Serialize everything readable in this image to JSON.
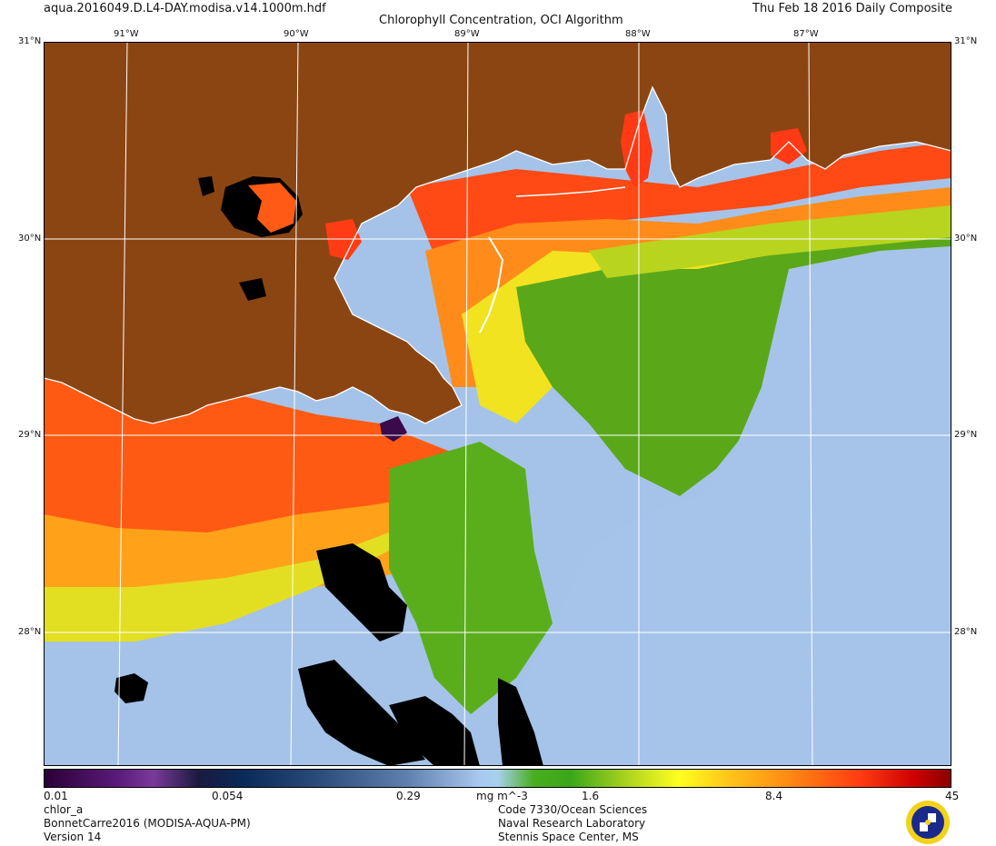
{
  "header": {
    "filename": "aqua.2016049.D.L4-DAY.modisa.v14.1000m.hdf",
    "title": "Chlorophyll Concentration, OCI Algorithm",
    "date": "Thu Feb 18 2016 Daily Composite"
  },
  "axes": {
    "lon_top": [
      "91°W",
      "90°W",
      "89°W",
      "88°W",
      "87°W"
    ],
    "lat_left": [
      "31°N",
      "30°N",
      "29°N",
      "28°N"
    ],
    "lat_right": [
      "31°N",
      "30°N",
      "29°N",
      "28°N"
    ]
  },
  "colorbar": {
    "ticks": [
      "0.01",
      "0.054",
      "0.29",
      "1.6",
      "8.4",
      "45"
    ],
    "units": "mg m^-3"
  },
  "footer": {
    "left": [
      "chlor_a",
      "BonnetCarre2016 (MODISA-AQUA-PM)",
      "Version 14"
    ],
    "right": [
      "Code 7330/Ocean Sciences",
      "Naval Research Laboratory",
      "Stennis Space Center, MS"
    ]
  },
  "colors": {
    "land": "#8B4513",
    "coast": "#ffffff",
    "grid": "#ffffff",
    "low_chl": "#9ec3ea",
    "mid_chl": "#3fa61d",
    "high_chl": "#ff2a10"
  }
}
